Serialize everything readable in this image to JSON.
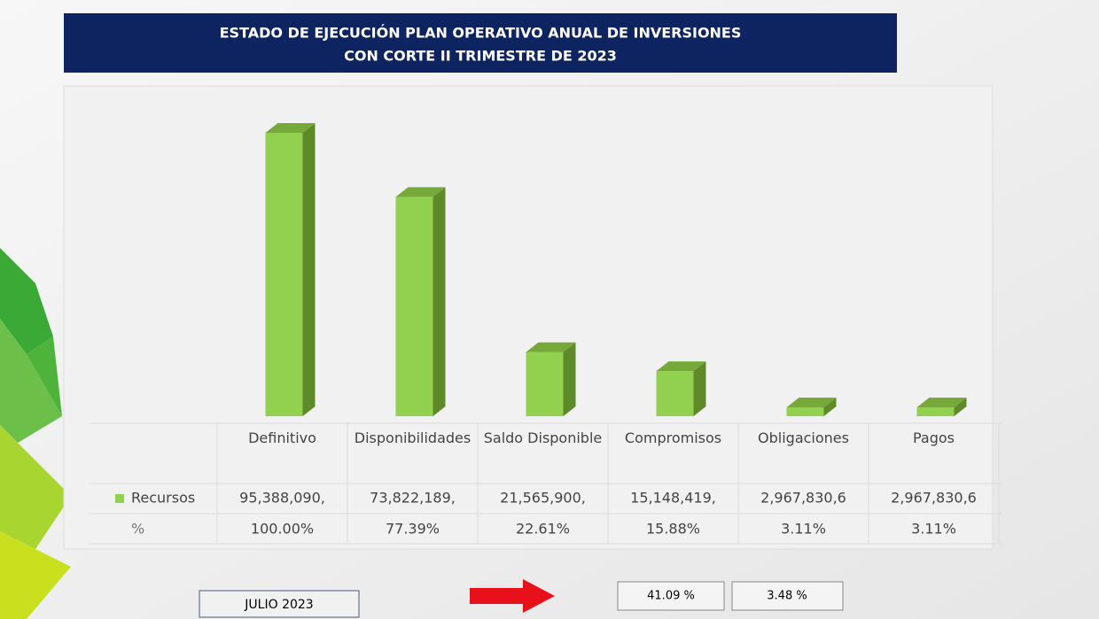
{
  "chart_data": {
    "type": "bar3d",
    "title": "ESTADO DE EJECUCIÓN PLAN OPERATIVO ANUAL DE INVERSIONES",
    "subtitle": "CON CORTE II TRIMESTRE DE 2023",
    "categories": [
      "Definitivo",
      "Disponibilidades",
      "Saldo Disponible",
      "Compromisos",
      "Obligaciones",
      "Pagos"
    ],
    "series": [
      {
        "name": "Recursos",
        "color": "#92d050",
        "values": [
          95388090,
          73822189,
          21565900,
          15148419,
          2967830.6,
          2967830.6
        ],
        "value_labels": [
          "95,388,090,",
          "73,822,189,",
          "21,565,900,",
          "15,148,419,",
          "2,967,830,6",
          "2,967,830,6"
        ]
      },
      {
        "name": "%",
        "values": [
          100,
          77.39,
          22.61,
          15.88,
          3.11,
          3.11
        ],
        "value_labels": [
          "100.00%",
          "77.39%",
          "22.61%",
          "15.88%",
          "3.11%",
          "3.11%"
        ]
      }
    ],
    "footer": {
      "period": "JULIO 2023",
      "indicator_1": "41.09 %",
      "indicator_2": "3.48 %"
    }
  }
}
